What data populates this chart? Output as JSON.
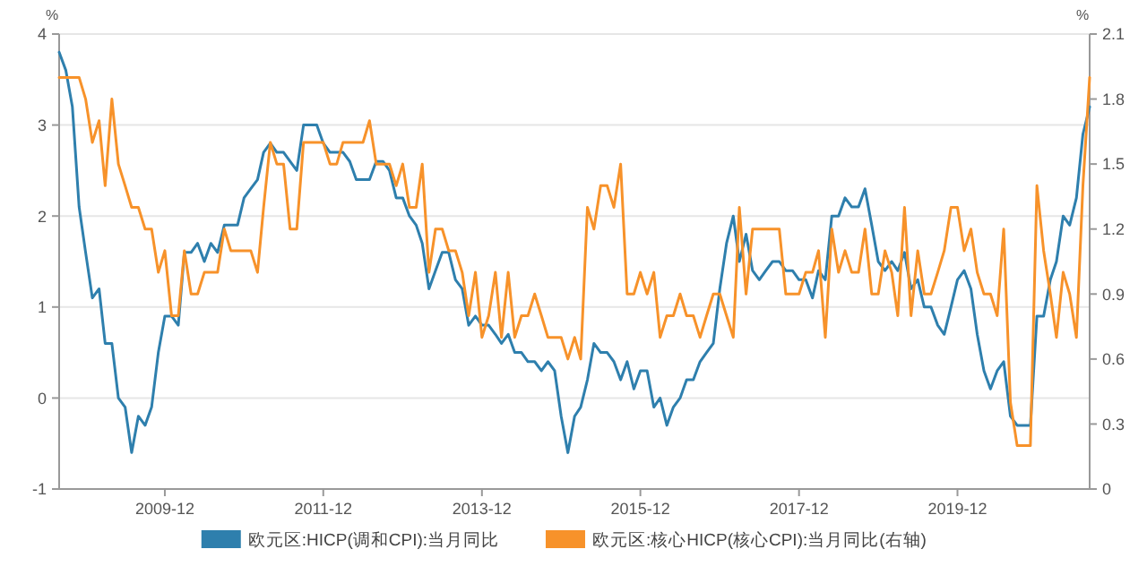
{
  "chart_data": {
    "type": "line",
    "ylabel": "%",
    "y2label": "%",
    "x": [
      "2008-08",
      "2008-09",
      "2008-10",
      "2008-11",
      "2008-12",
      "2009-01",
      "2009-02",
      "2009-03",
      "2009-04",
      "2009-05",
      "2009-06",
      "2009-07",
      "2009-08",
      "2009-09",
      "2009-10",
      "2009-11",
      "2009-12",
      "2010-01",
      "2010-02",
      "2010-03",
      "2010-04",
      "2010-05",
      "2010-06",
      "2010-07",
      "2010-08",
      "2010-09",
      "2010-10",
      "2010-11",
      "2010-12",
      "2011-01",
      "2011-02",
      "2011-03",
      "2011-04",
      "2011-05",
      "2011-06",
      "2011-07",
      "2011-08",
      "2011-09",
      "2011-10",
      "2011-11",
      "2011-12",
      "2012-01",
      "2012-02",
      "2012-03",
      "2012-04",
      "2012-05",
      "2012-06",
      "2012-07",
      "2012-08",
      "2012-09",
      "2012-10",
      "2012-11",
      "2012-12",
      "2013-01",
      "2013-02",
      "2013-03",
      "2013-04",
      "2013-05",
      "2013-06",
      "2013-07",
      "2013-08",
      "2013-09",
      "2013-10",
      "2013-11",
      "2013-12",
      "2014-01",
      "2014-02",
      "2014-03",
      "2014-04",
      "2014-05",
      "2014-06",
      "2014-07",
      "2014-08",
      "2014-09",
      "2014-10",
      "2014-11",
      "2014-12",
      "2015-01",
      "2015-02",
      "2015-03",
      "2015-04",
      "2015-05",
      "2015-06",
      "2015-07",
      "2015-08",
      "2015-09",
      "2015-10",
      "2015-11",
      "2015-12",
      "2016-01",
      "2016-02",
      "2016-03",
      "2016-04",
      "2016-05",
      "2016-06",
      "2016-07",
      "2016-08",
      "2016-09",
      "2016-10",
      "2016-11",
      "2016-12",
      "2017-01",
      "2017-02",
      "2017-03",
      "2017-04",
      "2017-05",
      "2017-06",
      "2017-07",
      "2017-08",
      "2017-09",
      "2017-10",
      "2017-11",
      "2017-12",
      "2018-01",
      "2018-02",
      "2018-03",
      "2018-04",
      "2018-05",
      "2018-06",
      "2018-07",
      "2018-08",
      "2018-09",
      "2018-10",
      "2018-11",
      "2018-12",
      "2019-01",
      "2019-02",
      "2019-03",
      "2019-04",
      "2019-05",
      "2019-06",
      "2019-07",
      "2019-08",
      "2019-09",
      "2019-10",
      "2019-11",
      "2019-12",
      "2020-01",
      "2020-02",
      "2020-03",
      "2020-04",
      "2020-05",
      "2020-06",
      "2020-07",
      "2020-08",
      "2020-09",
      "2020-10",
      "2020-11",
      "2020-12",
      "2021-01",
      "2021-02",
      "2021-03",
      "2021-04",
      "2021-05",
      "2021-06",
      "2021-07",
      "2021-08"
    ],
    "series": [
      {
        "name": "欧元区:HICP(调和CPI):当月同比",
        "color": "#2e7fad",
        "values": [
          3.8,
          3.6,
          3.2,
          2.1,
          1.6,
          1.1,
          1.2,
          0.6,
          0.6,
          0.0,
          -0.1,
          -0.6,
          -0.2,
          -0.3,
          -0.1,
          0.5,
          0.9,
          0.9,
          0.8,
          1.6,
          1.6,
          1.7,
          1.5,
          1.7,
          1.6,
          1.9,
          1.9,
          1.9,
          2.2,
          2.3,
          2.4,
          2.7,
          2.8,
          2.7,
          2.7,
          2.6,
          2.5,
          3.0,
          3.0,
          3.0,
          2.8,
          2.7,
          2.7,
          2.7,
          2.6,
          2.4,
          2.4,
          2.4,
          2.6,
          2.6,
          2.5,
          2.2,
          2.2,
          2.0,
          1.9,
          1.7,
          1.2,
          1.4,
          1.6,
          1.6,
          1.3,
          1.2,
          0.8,
          0.9,
          0.8,
          0.8,
          0.7,
          0.6,
          0.7,
          0.5,
          0.5,
          0.4,
          0.4,
          0.3,
          0.4,
          0.3,
          -0.2,
          -0.6,
          -0.2,
          -0.1,
          0.2,
          0.6,
          0.5,
          0.5,
          0.4,
          0.2,
          0.4,
          0.1,
          0.3,
          0.3,
          -0.1,
          0.0,
          -0.3,
          -0.1,
          0.0,
          0.2,
          0.2,
          0.4,
          0.5,
          0.6,
          1.2,
          1.7,
          2.0,
          1.5,
          1.8,
          1.4,
          1.3,
          1.4,
          1.5,
          1.5,
          1.4,
          1.4,
          1.3,
          1.3,
          1.1,
          1.4,
          1.3,
          2.0,
          2.0,
          2.2,
          2.1,
          2.1,
          2.3,
          1.9,
          1.5,
          1.4,
          1.5,
          1.4,
          1.6,
          1.2,
          1.3,
          1.0,
          1.0,
          0.8,
          0.7,
          1.0,
          1.3,
          1.4,
          1.2,
          0.7,
          0.3,
          0.1,
          0.3,
          0.4,
          -0.2,
          -0.3,
          -0.3,
          -0.3,
          0.9,
          0.9,
          1.3,
          1.5,
          2.0,
          1.9,
          2.2,
          2.9,
          3.2
        ]
      },
      {
        "name": "欧元区:核心HICP(核心CPI):当月同比(右轴)",
        "color": "#f7922a",
        "axis": "y2",
        "values": [
          1.9,
          1.9,
          1.9,
          1.9,
          1.8,
          1.6,
          1.7,
          1.4,
          1.8,
          1.5,
          1.4,
          1.3,
          1.3,
          1.2,
          1.2,
          1.0,
          1.1,
          0.8,
          0.8,
          1.1,
          0.9,
          0.9,
          1.0,
          1.0,
          1.0,
          1.2,
          1.1,
          1.1,
          1.1,
          1.1,
          1.0,
          1.3,
          1.6,
          1.5,
          1.5,
          1.2,
          1.2,
          1.6,
          1.6,
          1.6,
          1.6,
          1.5,
          1.5,
          1.6,
          1.6,
          1.6,
          1.6,
          1.7,
          1.5,
          1.5,
          1.5,
          1.4,
          1.5,
          1.3,
          1.3,
          1.5,
          1.0,
          1.2,
          1.2,
          1.1,
          1.1,
          1.0,
          0.8,
          1.0,
          0.7,
          0.8,
          1.0,
          0.7,
          1.0,
          0.7,
          0.8,
          0.8,
          0.9,
          0.8,
          0.7,
          0.7,
          0.7,
          0.6,
          0.7,
          0.6,
          1.3,
          1.2,
          1.4,
          1.4,
          1.3,
          1.5,
          0.9,
          0.9,
          1.0,
          0.9,
          1.0,
          0.7,
          0.8,
          0.8,
          0.9,
          0.8,
          0.8,
          0.7,
          0.8,
          0.9,
          0.9,
          0.8,
          0.7,
          1.3,
          0.9,
          1.2,
          1.2,
          1.2,
          1.2,
          1.2,
          0.9,
          0.9,
          0.9,
          1.0,
          1.0,
          1.1,
          0.7,
          1.2,
          1.0,
          1.1,
          1.0,
          1.0,
          1.2,
          0.9,
          0.9,
          1.1,
          1.0,
          0.8,
          1.3,
          0.8,
          1.1,
          0.9,
          0.9,
          1.0,
          1.1,
          1.3,
          1.3,
          1.1,
          1.2,
          1.0,
          0.9,
          0.9,
          0.8,
          1.2,
          0.4,
          0.2,
          0.2,
          0.2,
          1.4,
          1.1,
          0.9,
          0.7,
          1.0,
          0.9,
          0.7,
          1.4,
          1.9
        ]
      }
    ],
    "xlim": [
      "2008-08",
      "2021-08"
    ],
    "xticks": [
      "2009-12",
      "2011-12",
      "2013-12",
      "2015-12",
      "2017-12",
      "2019-12"
    ],
    "ylim": [
      -1,
      4
    ],
    "yticks": [
      -1,
      0,
      1,
      2,
      3,
      4
    ],
    "y2lim": [
      0,
      2.1
    ],
    "y2ticks": [
      0,
      0.3,
      0.6,
      0.9,
      1.2,
      1.5,
      1.8,
      2.1
    ],
    "grid": "y",
    "legend": "bottom"
  }
}
